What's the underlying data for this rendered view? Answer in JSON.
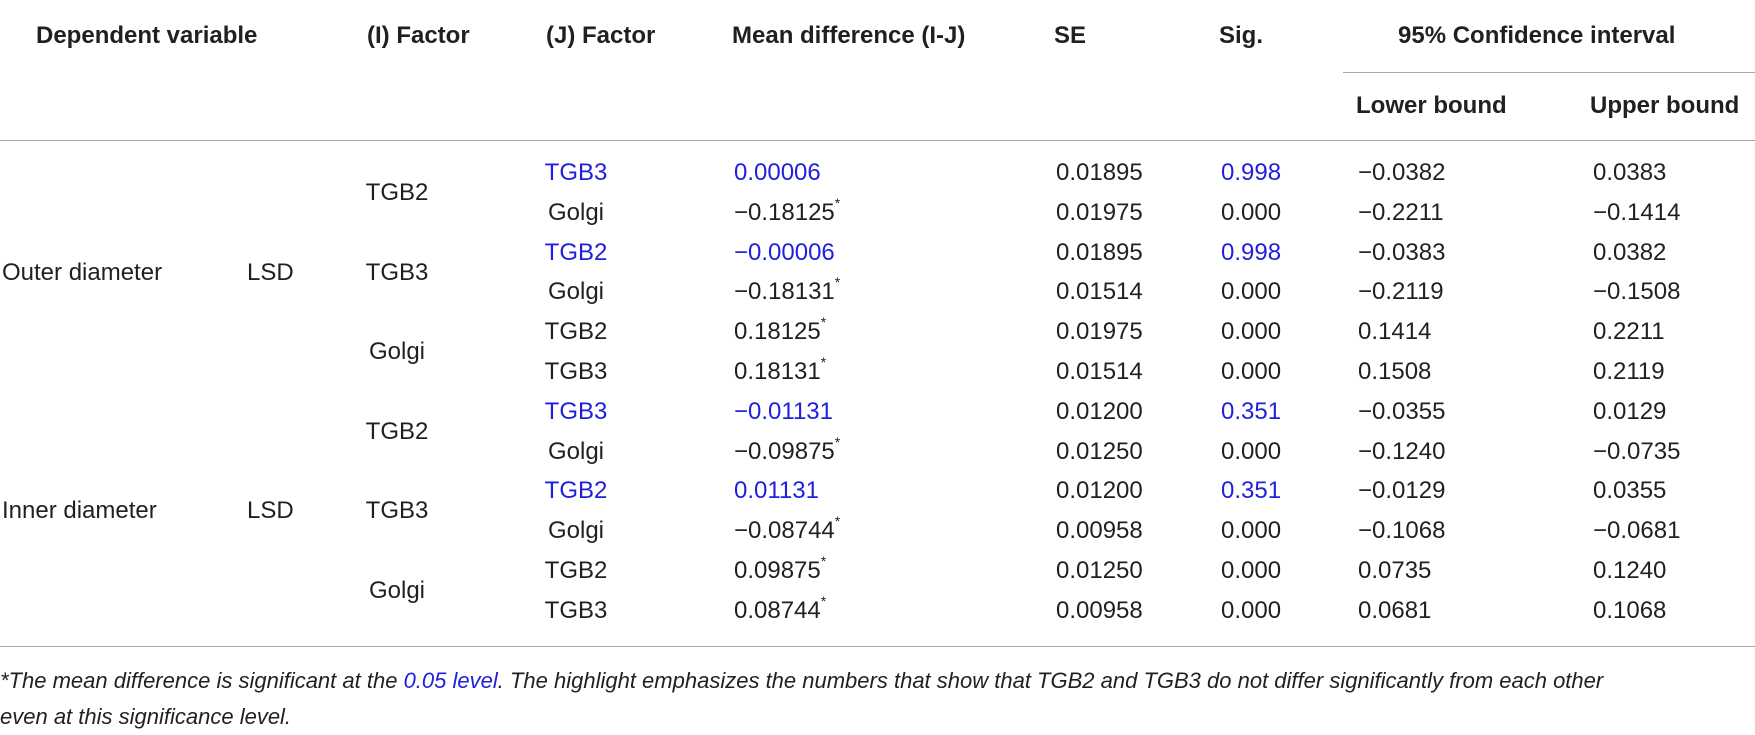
{
  "table": {
    "headers": {
      "dependent_variable": "Dependent variable",
      "i_factor": "(I) Factor",
      "j_factor": "(J) Factor",
      "mean_difference": "Mean difference (I-J)",
      "se": "SE",
      "sig": "Sig.",
      "ci": "95% Confidence interval",
      "lower": "Lower bound",
      "upper": "Upper bound"
    },
    "groups": [
      {
        "dependent": "Outer diameter",
        "test": "LSD"
      },
      {
        "dependent": "Inner diameter",
        "test": "LSD"
      }
    ],
    "i_factors": [
      "TGB2",
      "TGB3",
      "Golgi",
      "TGB2",
      "TGB3",
      "Golgi"
    ],
    "rows": [
      {
        "j": "TGB3",
        "md": "0.00006",
        "star": "",
        "se": "0.01895",
        "sig": "0.998",
        "lower": "−0.0382",
        "upper": "0.0383",
        "highlight": true
      },
      {
        "j": "Golgi",
        "md": "−0.18125",
        "star": "*",
        "se": "0.01975",
        "sig": "0.000",
        "lower": "−0.2211",
        "upper": "−0.1414",
        "highlight": false
      },
      {
        "j": "TGB2",
        "md": "−0.00006",
        "star": "",
        "se": "0.01895",
        "sig": "0.998",
        "lower": "−0.0383",
        "upper": "0.0382",
        "highlight": true
      },
      {
        "j": "Golgi",
        "md": "−0.18131",
        "star": "*",
        "se": "0.01514",
        "sig": "0.000",
        "lower": "−0.2119",
        "upper": "−0.1508",
        "highlight": false
      },
      {
        "j": "TGB2",
        "md": "0.18125",
        "star": "*",
        "se": "0.01975",
        "sig": "0.000",
        "lower": "0.1414",
        "upper": "0.2211",
        "highlight": false
      },
      {
        "j": "TGB3",
        "md": "0.18131",
        "star": "*",
        "se": "0.01514",
        "sig": "0.000",
        "lower": "0.1508",
        "upper": "0.2119",
        "highlight": false
      },
      {
        "j": "TGB3",
        "md": "−0.01131",
        "star": "",
        "se": "0.01200",
        "sig": "0.351",
        "lower": "−0.0355",
        "upper": "0.0129",
        "highlight": true
      },
      {
        "j": "Golgi",
        "md": "−0.09875",
        "star": "*",
        "se": "0.01250",
        "sig": "0.000",
        "lower": "−0.1240",
        "upper": "−0.0735",
        "highlight": false
      },
      {
        "j": "TGB2",
        "md": "0.01131",
        "star": "",
        "se": "0.01200",
        "sig": "0.351",
        "lower": "−0.0129",
        "upper": "0.0355",
        "highlight": true
      },
      {
        "j": "Golgi",
        "md": "−0.08744",
        "star": "*",
        "se": "0.00958",
        "sig": "0.000",
        "lower": "−0.1068",
        "upper": "−0.0681",
        "highlight": false
      },
      {
        "j": "TGB2",
        "md": "0.09875",
        "star": "*",
        "se": "0.01250",
        "sig": "0.000",
        "lower": "0.0735",
        "upper": "0.1240",
        "highlight": false
      },
      {
        "j": "TGB3",
        "md": "0.08744",
        "star": "*",
        "se": "0.00958",
        "sig": "0.000",
        "lower": "0.0681",
        "upper": "0.1068",
        "highlight": false
      }
    ]
  },
  "footnote": {
    "part1": "*The mean difference is significant at the ",
    "link": "0.05 level",
    "part2": ". The highlight emphasizes the numbers that show that TGB2 and TGB3 do not differ significantly from each other",
    "line2": "even at this significance level."
  },
  "colors": {
    "highlight": "#1f1fdd",
    "text": "#231f20",
    "rule": "#a7a9ac"
  }
}
